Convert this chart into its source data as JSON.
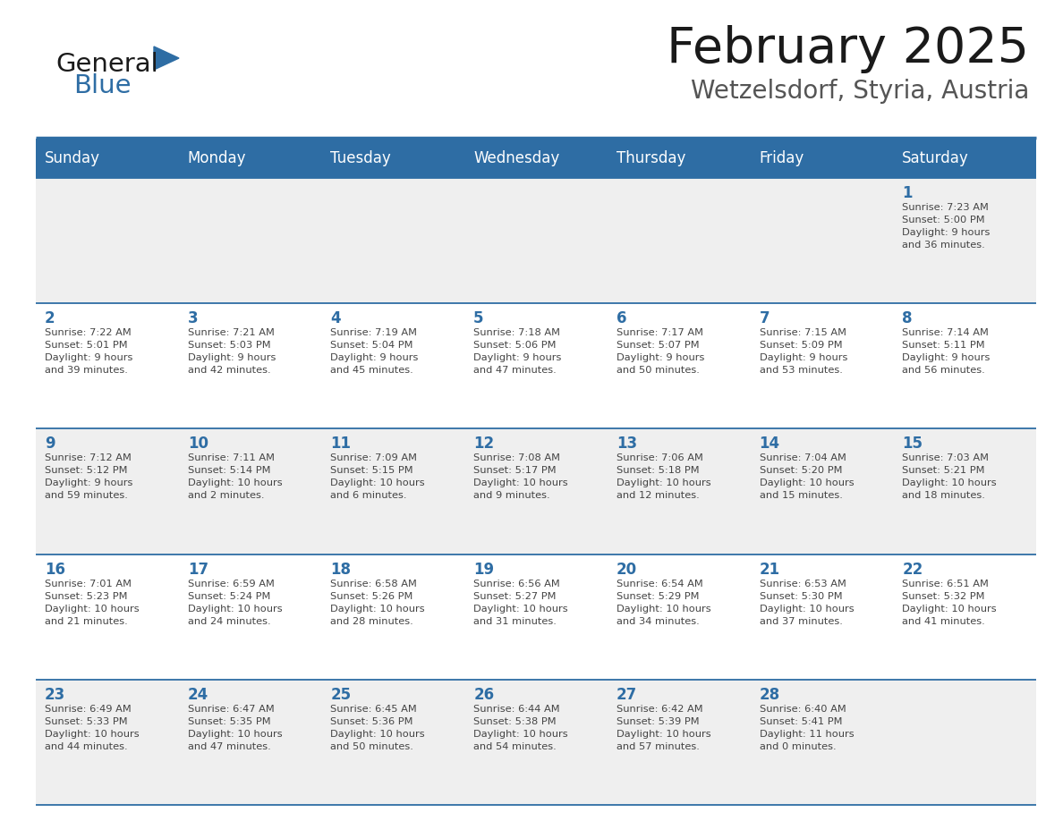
{
  "title": "February 2025",
  "subtitle": "Wetzelsdorf, Styria, Austria",
  "header_bg": "#2E6DA4",
  "header_text_color": "#FFFFFF",
  "cell_bg_light": "#EFEFEF",
  "cell_bg_white": "#FFFFFF",
  "cell_text_color": "#444444",
  "day_num_color": "#2E6DA4",
  "border_color": "#2E6DA4",
  "days_of_week": [
    "Sunday",
    "Monday",
    "Tuesday",
    "Wednesday",
    "Thursday",
    "Friday",
    "Saturday"
  ],
  "weeks": [
    [
      {
        "day": null,
        "info": null
      },
      {
        "day": null,
        "info": null
      },
      {
        "day": null,
        "info": null
      },
      {
        "day": null,
        "info": null
      },
      {
        "day": null,
        "info": null
      },
      {
        "day": null,
        "info": null
      },
      {
        "day": 1,
        "info": "Sunrise: 7:23 AM\nSunset: 5:00 PM\nDaylight: 9 hours\nand 36 minutes."
      }
    ],
    [
      {
        "day": 2,
        "info": "Sunrise: 7:22 AM\nSunset: 5:01 PM\nDaylight: 9 hours\nand 39 minutes."
      },
      {
        "day": 3,
        "info": "Sunrise: 7:21 AM\nSunset: 5:03 PM\nDaylight: 9 hours\nand 42 minutes."
      },
      {
        "day": 4,
        "info": "Sunrise: 7:19 AM\nSunset: 5:04 PM\nDaylight: 9 hours\nand 45 minutes."
      },
      {
        "day": 5,
        "info": "Sunrise: 7:18 AM\nSunset: 5:06 PM\nDaylight: 9 hours\nand 47 minutes."
      },
      {
        "day": 6,
        "info": "Sunrise: 7:17 AM\nSunset: 5:07 PM\nDaylight: 9 hours\nand 50 minutes."
      },
      {
        "day": 7,
        "info": "Sunrise: 7:15 AM\nSunset: 5:09 PM\nDaylight: 9 hours\nand 53 minutes."
      },
      {
        "day": 8,
        "info": "Sunrise: 7:14 AM\nSunset: 5:11 PM\nDaylight: 9 hours\nand 56 minutes."
      }
    ],
    [
      {
        "day": 9,
        "info": "Sunrise: 7:12 AM\nSunset: 5:12 PM\nDaylight: 9 hours\nand 59 minutes."
      },
      {
        "day": 10,
        "info": "Sunrise: 7:11 AM\nSunset: 5:14 PM\nDaylight: 10 hours\nand 2 minutes."
      },
      {
        "day": 11,
        "info": "Sunrise: 7:09 AM\nSunset: 5:15 PM\nDaylight: 10 hours\nand 6 minutes."
      },
      {
        "day": 12,
        "info": "Sunrise: 7:08 AM\nSunset: 5:17 PM\nDaylight: 10 hours\nand 9 minutes."
      },
      {
        "day": 13,
        "info": "Sunrise: 7:06 AM\nSunset: 5:18 PM\nDaylight: 10 hours\nand 12 minutes."
      },
      {
        "day": 14,
        "info": "Sunrise: 7:04 AM\nSunset: 5:20 PM\nDaylight: 10 hours\nand 15 minutes."
      },
      {
        "day": 15,
        "info": "Sunrise: 7:03 AM\nSunset: 5:21 PM\nDaylight: 10 hours\nand 18 minutes."
      }
    ],
    [
      {
        "day": 16,
        "info": "Sunrise: 7:01 AM\nSunset: 5:23 PM\nDaylight: 10 hours\nand 21 minutes."
      },
      {
        "day": 17,
        "info": "Sunrise: 6:59 AM\nSunset: 5:24 PM\nDaylight: 10 hours\nand 24 minutes."
      },
      {
        "day": 18,
        "info": "Sunrise: 6:58 AM\nSunset: 5:26 PM\nDaylight: 10 hours\nand 28 minutes."
      },
      {
        "day": 19,
        "info": "Sunrise: 6:56 AM\nSunset: 5:27 PM\nDaylight: 10 hours\nand 31 minutes."
      },
      {
        "day": 20,
        "info": "Sunrise: 6:54 AM\nSunset: 5:29 PM\nDaylight: 10 hours\nand 34 minutes."
      },
      {
        "day": 21,
        "info": "Sunrise: 6:53 AM\nSunset: 5:30 PM\nDaylight: 10 hours\nand 37 minutes."
      },
      {
        "day": 22,
        "info": "Sunrise: 6:51 AM\nSunset: 5:32 PM\nDaylight: 10 hours\nand 41 minutes."
      }
    ],
    [
      {
        "day": 23,
        "info": "Sunrise: 6:49 AM\nSunset: 5:33 PM\nDaylight: 10 hours\nand 44 minutes."
      },
      {
        "day": 24,
        "info": "Sunrise: 6:47 AM\nSunset: 5:35 PM\nDaylight: 10 hours\nand 47 minutes."
      },
      {
        "day": 25,
        "info": "Sunrise: 6:45 AM\nSunset: 5:36 PM\nDaylight: 10 hours\nand 50 minutes."
      },
      {
        "day": 26,
        "info": "Sunrise: 6:44 AM\nSunset: 5:38 PM\nDaylight: 10 hours\nand 54 minutes."
      },
      {
        "day": 27,
        "info": "Sunrise: 6:42 AM\nSunset: 5:39 PM\nDaylight: 10 hours\nand 57 minutes."
      },
      {
        "day": 28,
        "info": "Sunrise: 6:40 AM\nSunset: 5:41 PM\nDaylight: 11 hours\nand 0 minutes."
      },
      {
        "day": null,
        "info": null
      }
    ]
  ]
}
